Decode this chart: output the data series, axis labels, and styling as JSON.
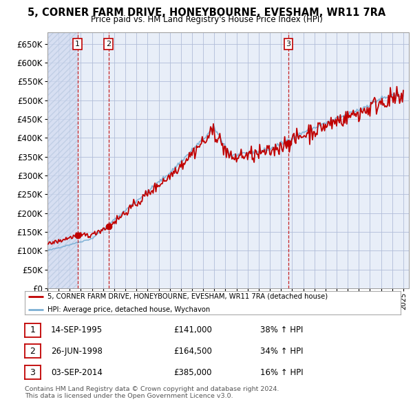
{
  "title": "5, CORNER FARM DRIVE, HONEYBOURNE, EVESHAM, WR11 7RA",
  "subtitle": "Price paid vs. HM Land Registry's House Price Index (HPI)",
  "ytick_values": [
    0,
    50000,
    100000,
    150000,
    200000,
    250000,
    300000,
    350000,
    400000,
    450000,
    500000,
    550000,
    600000,
    650000
  ],
  "xmin": 1993.0,
  "xmax": 2025.5,
  "ymin": 0,
  "ymax": 680000,
  "hpi_color": "#7bafd4",
  "price_color": "#c00000",
  "sale_color": "#c00000",
  "transactions": [
    {
      "date_num": 1995.71,
      "price": 141000,
      "label": "1"
    },
    {
      "date_num": 1998.49,
      "price": 164500,
      "label": "2"
    },
    {
      "date_num": 2014.67,
      "price": 385000,
      "label": "3"
    }
  ],
  "legend_entries": [
    "5, CORNER FARM DRIVE, HONEYBOURNE, EVESHAM, WR11 7RA (detached house)",
    "HPI: Average price, detached house, Wychavon"
  ],
  "table_rows": [
    {
      "num": "1",
      "date": "14-SEP-1995",
      "price": "£141,000",
      "change": "38% ↑ HPI"
    },
    {
      "num": "2",
      "date": "26-JUN-1998",
      "price": "£164,500",
      "change": "34% ↑ HPI"
    },
    {
      "num": "3",
      "date": "03-SEP-2014",
      "price": "£385,000",
      "change": "16% ↑ HPI"
    }
  ],
  "footnote": "Contains HM Land Registry data © Crown copyright and database right 2024.\nThis data is licensed under the Open Government Licence v3.0.",
  "background_color": "#ffffff",
  "plot_bg_color": "#e8eef8",
  "hatch_bg_color": "#d8e0f0",
  "grid_color": "#b0bcd8"
}
